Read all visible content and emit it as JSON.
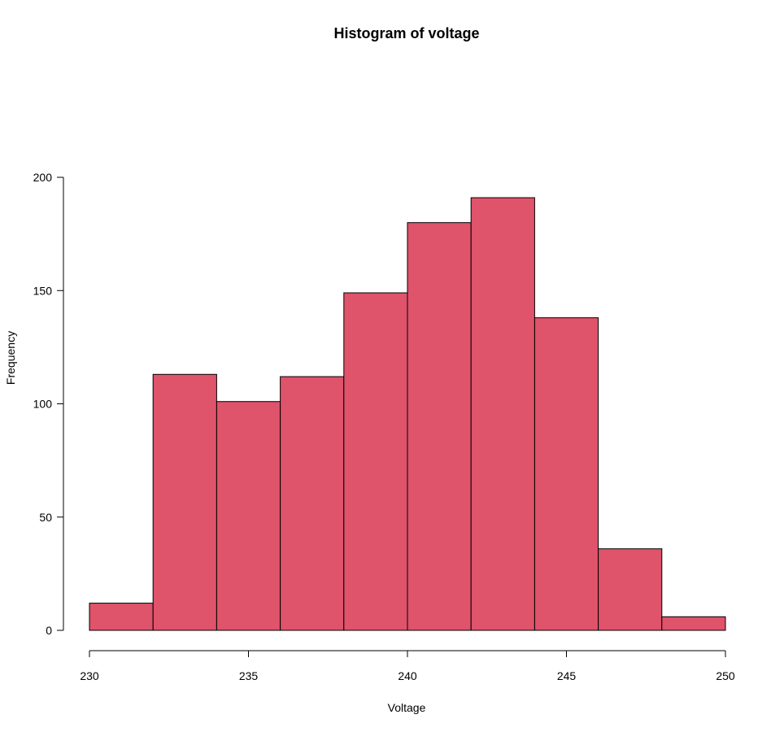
{
  "chart_data": {
    "type": "bar",
    "title": "Histogram of voltage",
    "xlabel": "Voltage",
    "ylabel": "Frequency",
    "bin_edges": [
      230,
      232,
      234,
      236,
      238,
      240,
      242,
      244,
      246,
      248,
      250
    ],
    "values": [
      12,
      113,
      101,
      112,
      149,
      180,
      191,
      138,
      36,
      6
    ],
    "xlim": [
      230,
      250
    ],
    "ylim": [
      0,
      200
    ],
    "x_ticks": [
      230,
      235,
      240,
      245,
      250
    ],
    "y_ticks": [
      0,
      50,
      100,
      150,
      200
    ],
    "bar_color": "#DF536B",
    "grid": false,
    "legend": "none"
  }
}
